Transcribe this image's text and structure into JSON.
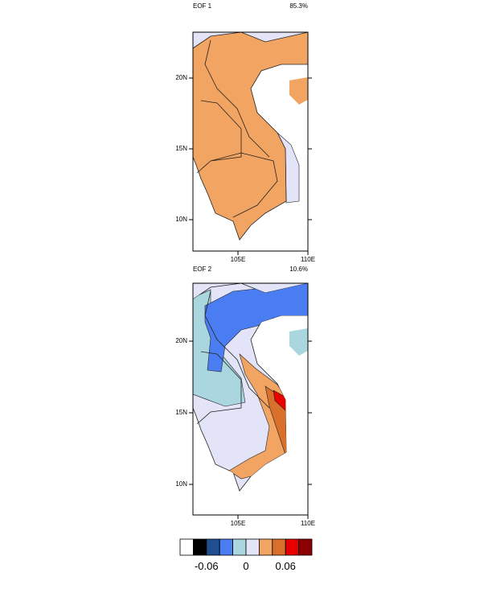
{
  "panels": [
    {
      "title": "EOF 1",
      "variance": "85.3%",
      "lat_labels": [
        "20N",
        "15N",
        "10N"
      ],
      "lon_labels": [
        "105E",
        "110E"
      ]
    },
    {
      "title": "EOF 2",
      "variance": "10.6%",
      "lat_labels": [
        "20N",
        "15N",
        "10N"
      ],
      "lon_labels": [
        "105E",
        "110E"
      ]
    }
  ],
  "colorbar": {
    "colors": [
      "#ffffff",
      "#000000",
      "#1e4f8e",
      "#4a7cf2",
      "#a9d6df",
      "#e3e4f7",
      "#f2a462",
      "#d86f2a",
      "#e80000",
      "#8b0000"
    ],
    "labels": [
      "-0.06",
      "0",
      "0.06"
    ]
  }
}
